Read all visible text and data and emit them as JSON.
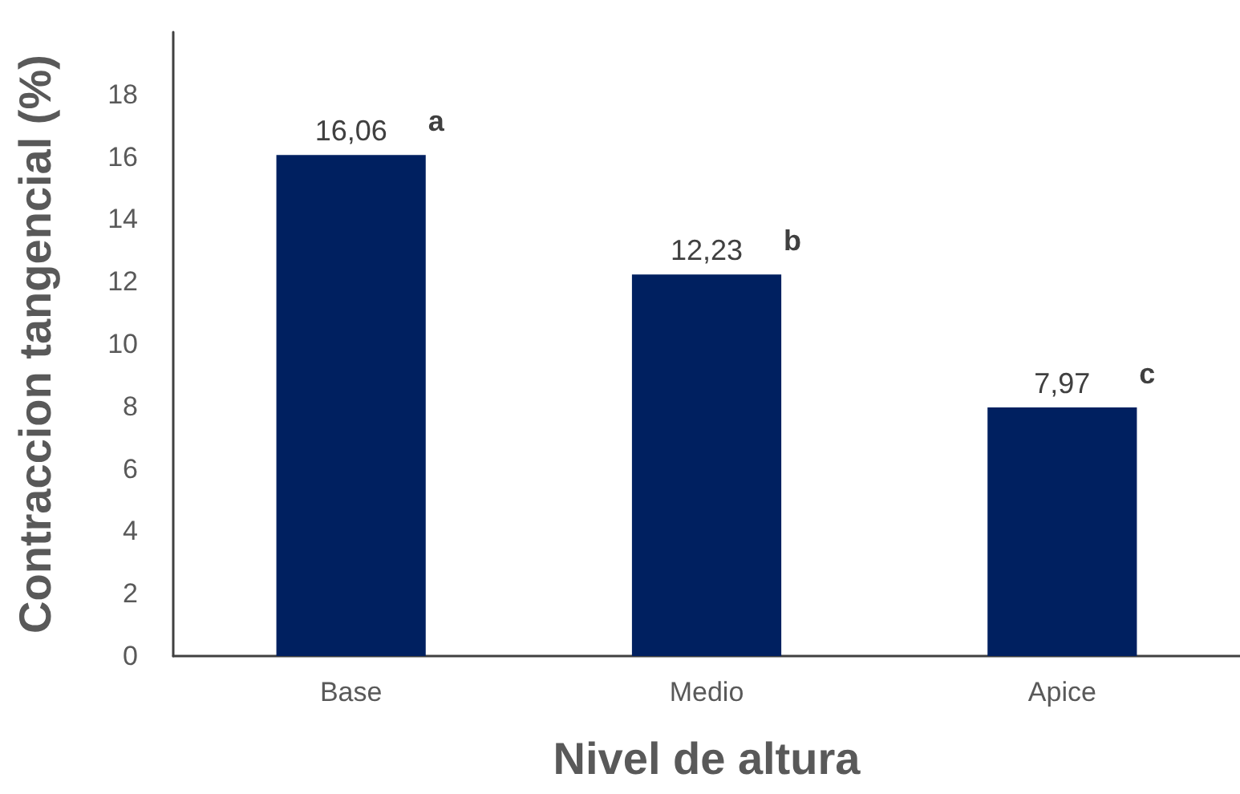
{
  "chart_data": {
    "type": "bar",
    "xlabel": "Nivel de altura",
    "ylabel": "Contraccion tangencial (%)",
    "categories": [
      "Base",
      "Medio",
      "Apice"
    ],
    "values": [
      16.06,
      12.23,
      7.97
    ],
    "color": "#002060",
    "value_labels": [
      "16,06",
      "12,23",
      "7,97"
    ],
    "annotations": [
      {
        "text": "a",
        "x": "Base",
        "y": 16.06
      },
      {
        "text": "b",
        "x": "Medio",
        "y": 12.23
      },
      {
        "text": "c",
        "x": "Apice",
        "y": 7.97
      }
    ],
    "ylim": [
      0,
      20
    ],
    "yticks": [
      0,
      2,
      4,
      6,
      8,
      10,
      12,
      14,
      16,
      18
    ],
    "grid": false
  }
}
